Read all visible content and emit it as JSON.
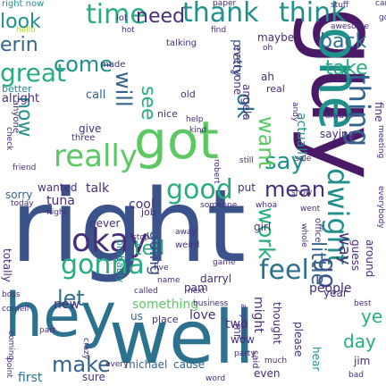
{
  "title": "",
  "palette": {
    "dark_purple": "#4a1a66",
    "purple": "#472d7b",
    "indigo": "#3b528b",
    "slate_blue": "#35638d",
    "blue_teal": "#2c728e",
    "teal": "#21908d",
    "sea_green": "#27ad81",
    "green": "#5cc863",
    "lime": "#8fd744",
    "yellow_green": "#c8e020",
    "pale_green": "#aadc32"
  },
  "words": [
    {
      "text": "guy"
    },
    {
      "text": "right"
    },
    {
      "text": "hey"
    },
    {
      "text": "well"
    },
    {
      "text": "one"
    },
    {
      "text": "got"
    },
    {
      "text": "okay"
    },
    {
      "text": "really"
    },
    {
      "text": "thing"
    },
    {
      "text": "good"
    },
    {
      "text": "gonna"
    },
    {
      "text": "dwight"
    },
    {
      "text": "time"
    },
    {
      "text": "thank"
    },
    {
      "text": "think"
    },
    {
      "text": "feel"
    },
    {
      "text": "go"
    },
    {
      "text": "make"
    },
    {
      "text": "say"
    },
    {
      "text": "need"
    },
    {
      "text": "look"
    },
    {
      "text": "erin"
    },
    {
      "text": "great"
    },
    {
      "text": "back"
    },
    {
      "text": "come"
    },
    {
      "text": "see"
    },
    {
      "text": "will"
    },
    {
      "text": "now"
    },
    {
      "text": "ok"
    },
    {
      "text": "want"
    },
    {
      "text": "mean"
    },
    {
      "text": "take"
    },
    {
      "text": "let"
    },
    {
      "text": "tell"
    },
    {
      "text": "work"
    },
    {
      "text": "going"
    },
    {
      "text": "people"
    },
    {
      "text": "little"
    },
    {
      "text": "way"
    },
    {
      "text": "day"
    },
    {
      "text": "ye"
    },
    {
      "text": "maybe"
    },
    {
      "text": "pretty"
    },
    {
      "text": "angela"
    },
    {
      "text": "actually"
    },
    {
      "text": "tuna"
    },
    {
      "text": "talk"
    },
    {
      "text": "wanted"
    },
    {
      "text": "cool"
    },
    {
      "text": "sorry"
    },
    {
      "text": "new"
    },
    {
      "text": "something"
    },
    {
      "text": "love"
    },
    {
      "text": "two"
    },
    {
      "text": "michael"
    },
    {
      "text": "first"
    },
    {
      "text": "sure"
    },
    {
      "text": "cause"
    },
    {
      "text": "even"
    },
    {
      "text": "jim"
    },
    {
      "text": "hear"
    },
    {
      "text": "us"
    },
    {
      "text": "place"
    },
    {
      "text": "darryl"
    },
    {
      "text": "mr"
    },
    {
      "text": "might"
    },
    {
      "text": "thought"
    },
    {
      "text": "please"
    },
    {
      "text": "call"
    },
    {
      "text": "give"
    },
    {
      "text": "nice"
    },
    {
      "text": "old"
    },
    {
      "text": "job"
    },
    {
      "text": "never"
    },
    {
      "text": "totally"
    },
    {
      "text": "probably"
    },
    {
      "text": "year"
    },
    {
      "text": "alright"
    },
    {
      "text": "better"
    },
    {
      "text": "everyone"
    },
    {
      "text": "ah"
    },
    {
      "text": "real"
    },
    {
      "text": "made"
    },
    {
      "text": "talking"
    },
    {
      "text": "hello"
    },
    {
      "text": "lot"
    },
    {
      "text": "hot"
    },
    {
      "text": "stuff"
    },
    {
      "text": "awesome"
    },
    {
      "text": "car"
    },
    {
      "text": "god"
    },
    {
      "text": "right now"
    },
    {
      "text": "fine"
    },
    {
      "text": "meeting"
    },
    {
      "text": "saying"
    },
    {
      "text": "always"
    },
    {
      "text": "help"
    },
    {
      "text": "kind"
    },
    {
      "text": "robert"
    },
    {
      "text": "still"
    },
    {
      "text": "put"
    },
    {
      "text": "whoa"
    },
    {
      "text": "show"
    },
    {
      "text": "went"
    },
    {
      "text": "someone"
    },
    {
      "text": "girl"
    },
    {
      "text": "away"
    },
    {
      "text": "weird"
    },
    {
      "text": "stop"
    },
    {
      "text": "pam"
    },
    {
      "text": "name"
    },
    {
      "text": "five"
    },
    {
      "text": "called"
    },
    {
      "text": "next"
    },
    {
      "text": "boss"
    },
    {
      "text": "cornell"
    },
    {
      "text": "coming"
    },
    {
      "text": "crazy"
    },
    {
      "text": "wow"
    },
    {
      "text": "party"
    },
    {
      "text": "said"
    },
    {
      "text": "word"
    },
    {
      "text": "much"
    },
    {
      "text": "every"
    },
    {
      "text": "guess"
    },
    {
      "text": "anything"
    },
    {
      "text": "around"
    },
    {
      "text": "office"
    },
    {
      "text": "best"
    },
    {
      "text": "whole"
    },
    {
      "text": "three"
    },
    {
      "text": "check"
    },
    {
      "text": "friend"
    },
    {
      "text": "today"
    },
    {
      "text": "night"
    },
    {
      "text": "andy"
    },
    {
      "text": "sale"
    },
    {
      "text": "everybody"
    },
    {
      "text": "business"
    },
    {
      "text": "point"
    },
    {
      "text": "paper"
    },
    {
      "text": "oh"
    },
    {
      "text": "find"
    },
    {
      "text": "anyone"
    },
    {
      "text": "part"
    },
    {
      "text": "game"
    },
    {
      "text": "bad"
    }
  ]
}
